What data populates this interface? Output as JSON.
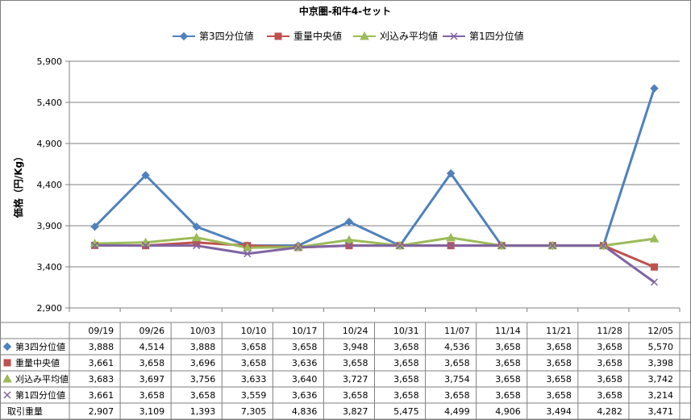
{
  "chart_data": {
    "type": "line",
    "title": "中京圏-和牛4-セット",
    "xlabel": "",
    "ylabel": "価格（円/Kg）",
    "categories": [
      "09/19",
      "09/26",
      "10/03",
      "10/10",
      "10/17",
      "10/24",
      "10/31",
      "11/07",
      "11/14",
      "11/21",
      "11/28",
      "12/05"
    ],
    "ylim": [
      2900,
      5900
    ],
    "yticks": [
      "5,900",
      "5,400",
      "4,900",
      "4,400",
      "3,900",
      "3,400",
      "2,900"
    ],
    "legend_position": "top",
    "series": [
      {
        "name": "第3四分位値",
        "color": "#4f81bd",
        "marker": "diamond",
        "values": [
          3888,
          4514,
          3888,
          3658,
          3658,
          3948,
          3658,
          4536,
          3658,
          3658,
          3658,
          5570
        ],
        "display": [
          "3,888",
          "4,514",
          "3,888",
          "3,658",
          "3,658",
          "3,948",
          "3,658",
          "4,536",
          "3,658",
          "3,658",
          "3,658",
          "5,570"
        ]
      },
      {
        "name": "重量中央値",
        "color": "#c0504d",
        "marker": "square",
        "values": [
          3661,
          3658,
          3696,
          3658,
          3636,
          3658,
          3658,
          3658,
          3658,
          3658,
          3658,
          3398
        ],
        "display": [
          "3,661",
          "3,658",
          "3,696",
          "3,658",
          "3,636",
          "3,658",
          "3,658",
          "3,658",
          "3,658",
          "3,658",
          "3,658",
          "3,398"
        ]
      },
      {
        "name": "刈込み平均値",
        "color": "#9bbb59",
        "marker": "triangle",
        "values": [
          3683,
          3697,
          3756,
          3633,
          3640,
          3727,
          3658,
          3754,
          3658,
          3658,
          3658,
          3742
        ],
        "display": [
          "3,683",
          "3,697",
          "3,756",
          "3,633",
          "3,640",
          "3,727",
          "3,658",
          "3,754",
          "3,658",
          "3,658",
          "3,658",
          "3,742"
        ]
      },
      {
        "name": "第1四分位値",
        "color": "#8064a2",
        "marker": "x",
        "values": [
          3661,
          3658,
          3658,
          3559,
          3636,
          3658,
          3658,
          3658,
          3658,
          3658,
          3658,
          3214
        ],
        "display": [
          "3,661",
          "3,658",
          "3,658",
          "3,559",
          "3,636",
          "3,658",
          "3,658",
          "3,658",
          "3,658",
          "3,658",
          "3,658",
          "3,214"
        ]
      }
    ],
    "table_extra_row": {
      "name": "取引重量",
      "values": [
        2907,
        3109,
        1393,
        7305,
        4836,
        3827,
        5475,
        4499,
        4906,
        3494,
        4282,
        3471
      ],
      "display": [
        "2,907",
        "3,109",
        "1,393",
        "7,305",
        "4,836",
        "3,827",
        "5,475",
        "4,499",
        "4,906",
        "3,494",
        "4,282",
        "3,471"
      ]
    }
  }
}
